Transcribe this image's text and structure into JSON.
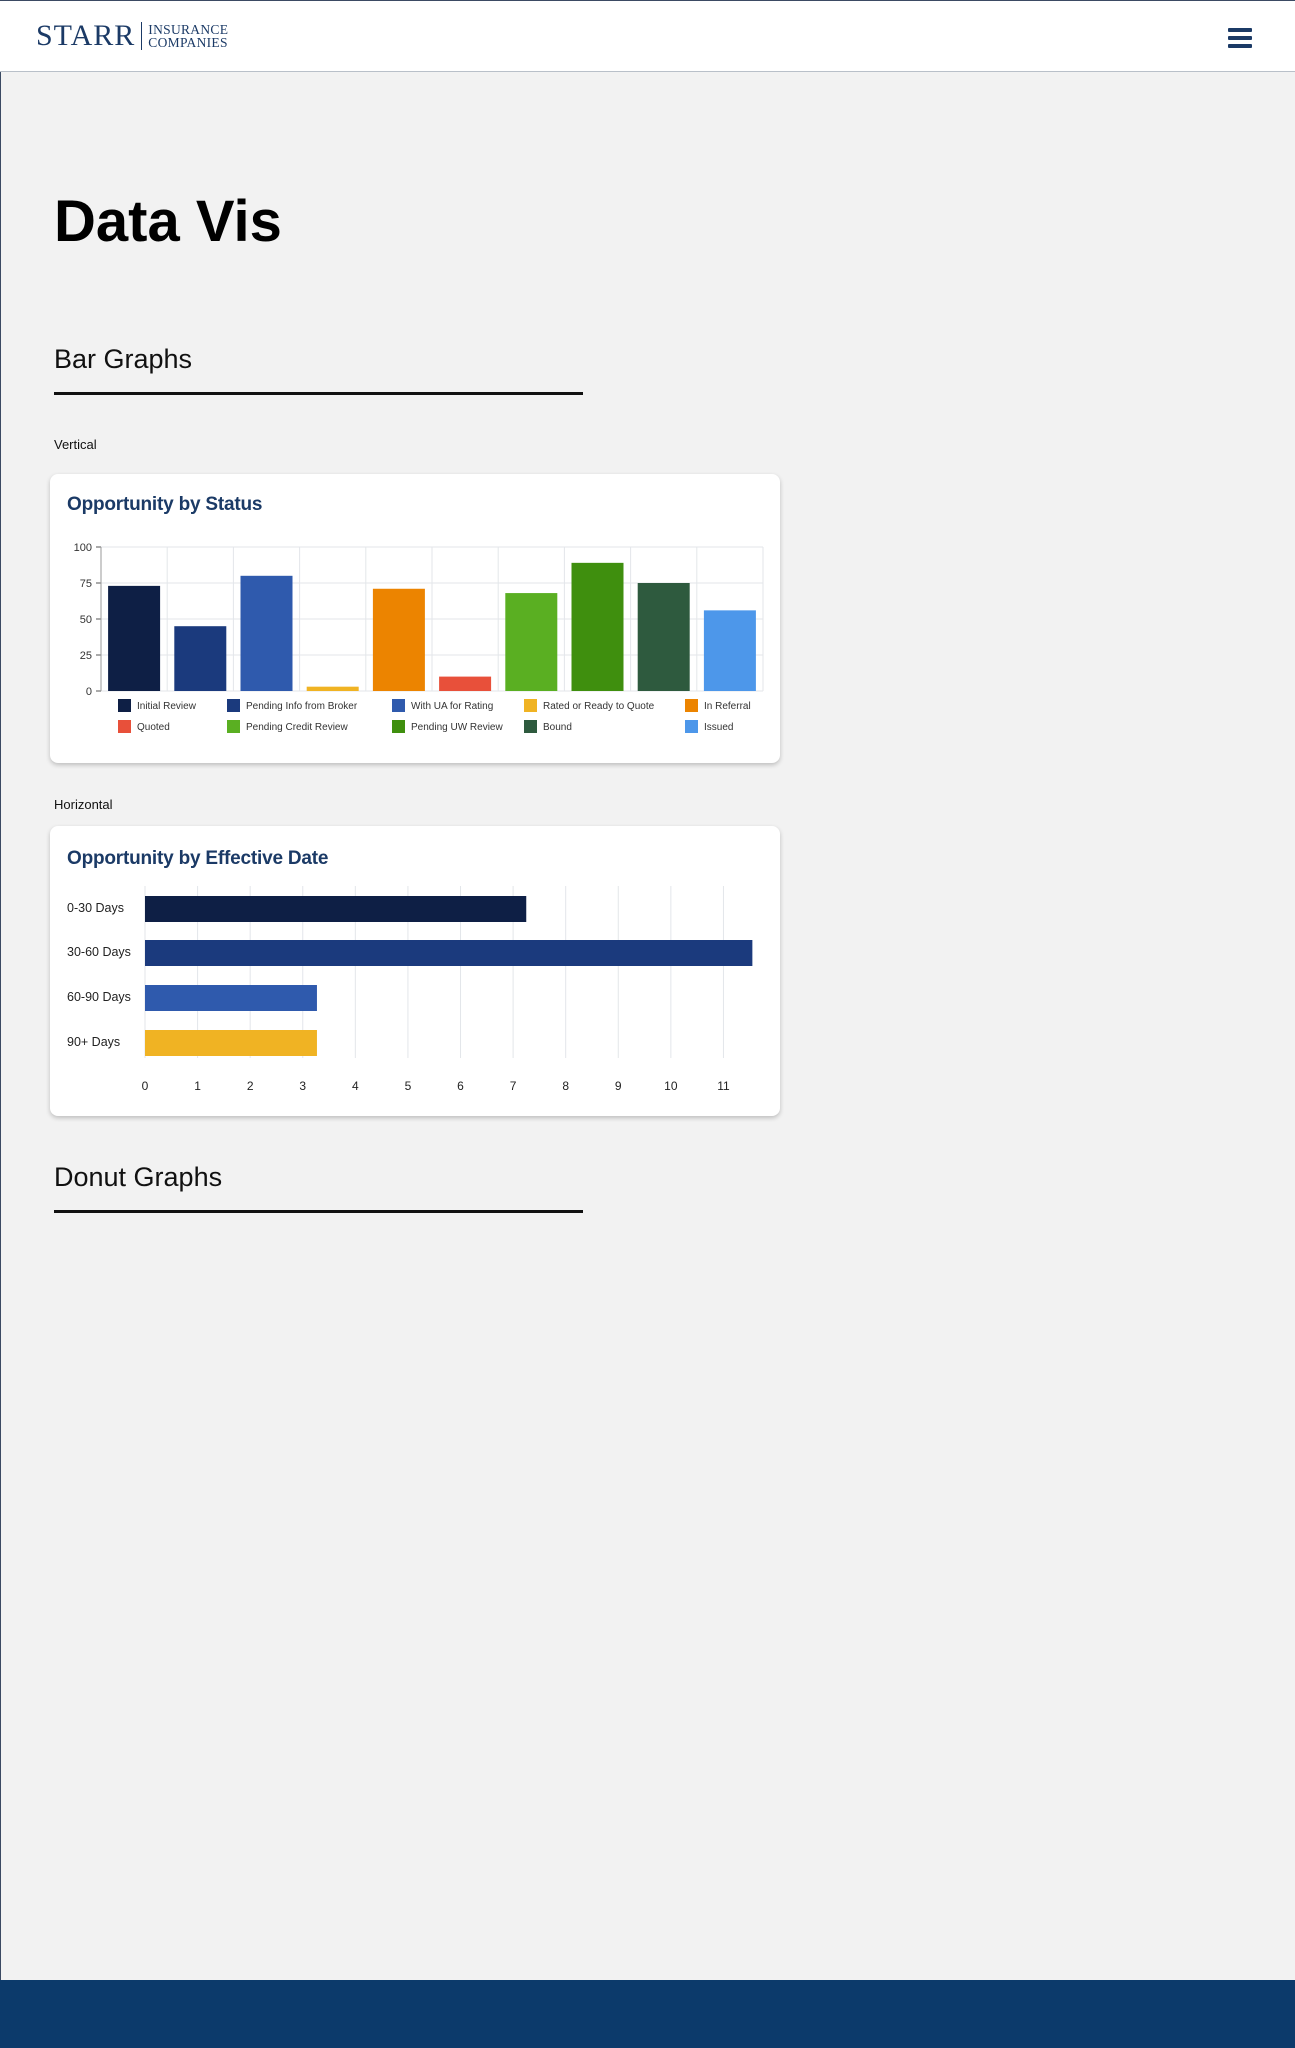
{
  "header": {
    "logo_main": "STARR",
    "logo_line1": "INSURANCE",
    "logo_line2": "COMPANIES",
    "menu_icon": "hamburger-menu-icon"
  },
  "page": {
    "title": "Data Vis"
  },
  "sections": {
    "bar_graphs": "Bar Graphs",
    "donut_graphs": "Donut Graphs",
    "vertical_label": "Vertical",
    "horizontal_label": "Horizontal"
  },
  "colors": {
    "brand_navy": "#1b3a66",
    "footer_navy": "#0c3a6b",
    "background": "#f2f2f2"
  },
  "chart_data": [
    {
      "type": "bar",
      "orientation": "vertical",
      "title": "Opportunity by Status",
      "categories": [
        "Initial Review",
        "Pending Info from Broker",
        "With UA for Rating",
        "Rated or Ready to Quote",
        "In Referral",
        "Quoted",
        "Pending Credit Review",
        "Pending UW Review",
        "Bound",
        "Issued"
      ],
      "values": [
        73,
        45,
        80,
        3,
        71,
        10,
        68,
        89,
        75,
        56
      ],
      "colors": [
        "#0e1f45",
        "#1b3a7d",
        "#2f5aad",
        "#f0b323",
        "#ec8400",
        "#e8503a",
        "#5aaf22",
        "#3f8f0e",
        "#2e5a3e",
        "#4d97ea"
      ],
      "yticks": [
        "0",
        "25",
        "50",
        "75",
        "100"
      ],
      "ylim": [
        0,
        100
      ],
      "grid": true,
      "legend_position": "bottom"
    },
    {
      "type": "bar",
      "orientation": "horizontal",
      "title": "Opportunity by Effective Date",
      "categories": [
        "0-30 Days",
        "30-60 Days",
        "60-90 Days",
        "90+ Days"
      ],
      "values": [
        7.25,
        11.55,
        3.27,
        3.27
      ],
      "colors": [
        "#0e1f45",
        "#1b3a7d",
        "#2f5aad",
        "#f0b323"
      ],
      "xticks": [
        "0",
        "1",
        "2",
        "3",
        "4",
        "5",
        "6",
        "7",
        "8",
        "9",
        "10",
        "11"
      ],
      "xlim": [
        0,
        11.6
      ],
      "grid": true
    }
  ]
}
